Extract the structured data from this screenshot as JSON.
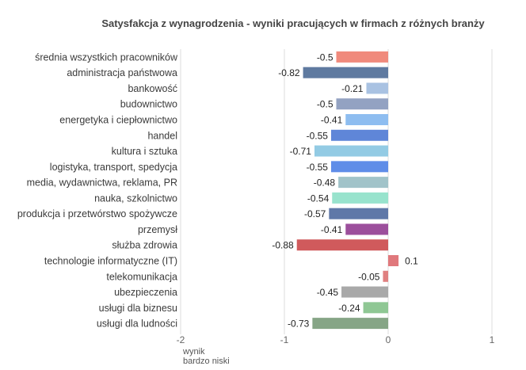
{
  "chart_data": {
    "type": "bar",
    "orientation": "horizontal",
    "title": "Satysfakcja z wynagrodzenia - wyniki pracujących w firmach z różnych branży",
    "categories": [
      "średnia wszystkich pracowników",
      "administracja państwowa",
      "bankowość",
      "budownictwo",
      "energetyka i ciepłownictwo",
      "handel",
      "kultura i sztuka",
      "logistyka, transport, spedycja",
      "media, wydawnictwa, reklama, PR",
      "nauka, szkolnictwo",
      "produkcja i przetwórstwo spożywcze",
      "przemysł",
      "służba zdrowia",
      "technologie informatyczne (IT)",
      "telekomunikacja",
      "ubezpieczenia",
      "usługi dla biznesu",
      "usługi dla ludności"
    ],
    "values": [
      -0.5,
      -0.82,
      -0.21,
      -0.5,
      -0.41,
      -0.55,
      -0.71,
      -0.55,
      -0.48,
      -0.54,
      -0.57,
      -0.41,
      -0.88,
      0.1,
      -0.05,
      -0.45,
      -0.24,
      -0.73
    ],
    "value_labels": [
      "-0.5",
      "-0.82",
      "-0.21",
      "-0.5",
      "-0.41",
      "-0.55",
      "-0.71",
      "-0.55",
      "-0.48",
      "-0.54",
      "-0.57",
      "-0.41",
      "-0.88",
      "0.1",
      "-0.05",
      "-0.45",
      "-0.24",
      "-0.73"
    ],
    "colors": [
      "#f08a7c",
      "#5f7aa0",
      "#a9c2e2",
      "#93a2c2",
      "#8ebdf0",
      "#5f86d8",
      "#93cbe4",
      "#5f8de8",
      "#a1c3c9",
      "#98e3cd",
      "#5f78a8",
      "#9c4f9c",
      "#d05a5c",
      "#e0787c",
      "#e08080",
      "#a9a9a9",
      "#8fc794",
      "#86a586"
    ],
    "xlim": [
      -2,
      1.3
    ],
    "xticks": [
      -2,
      -1,
      0,
      1
    ],
    "xtick_labels": [
      "-2",
      "-1",
      "0",
      "1"
    ],
    "xlabel_note": [
      "wynik",
      "bardzo niski"
    ],
    "grid": "vertical"
  }
}
